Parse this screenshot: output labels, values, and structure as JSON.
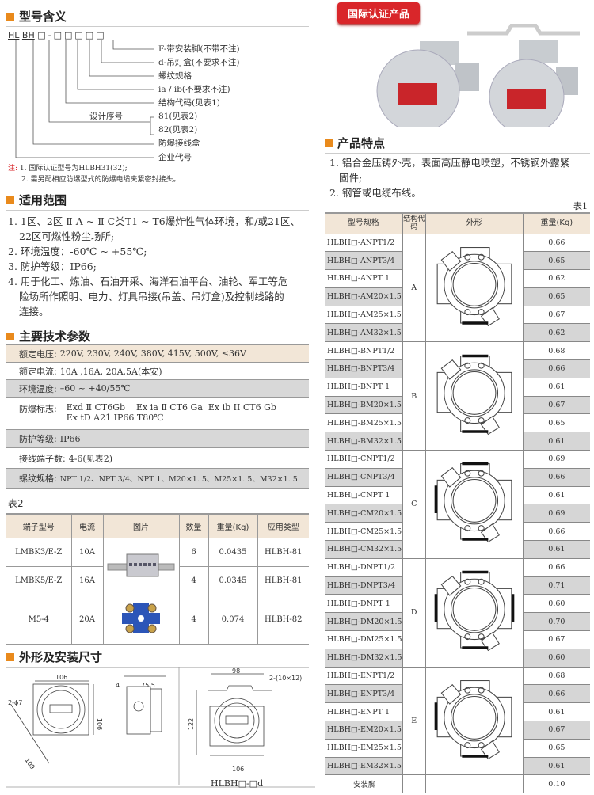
{
  "model": {
    "title": "型号含义",
    "prefix1": "HL",
    "prefix2": "BH",
    "boxes": "□-□□□□□",
    "labels": [
      "F-带安装脚(不带不注)",
      "d-吊灯盒(不要求不注)",
      "螺纹规格",
      "ia / ib(不要求不注)",
      "结构代码(见表1)",
      "81(见表2)",
      "82(见表2)",
      "防爆接线盒",
      "企业代号"
    ],
    "design_seq": "设计序号",
    "note_label": "注:",
    "notes": [
      "1. 国际认证型号为HLBH31(32);",
      "2. 需另配相应防爆型式的防爆电缆夹紧密封接头。"
    ]
  },
  "scope": {
    "title": "适用范围",
    "items": [
      "1. 1区、2区 Ⅱ A ~ Ⅱ C类T1 ~ T6爆炸性气体环境，和/或21区、",
      "22区可燃性粉尘场所;",
      "2. 环境温度：-60℃ ~ +55℃;",
      "3. 防护等级：IP66;",
      "4. 用于化工、炼油、石油开采、海洋石油平台、油轮、军工等危",
      "险场所作照明、电力、灯具吊接(吊盖、吊灯盒)及控制线路的",
      "连接。"
    ]
  },
  "params": {
    "title": "主要技术参数",
    "rows": [
      {
        "label": "额定电压:",
        "value": "220V, 230V, 240V, 380V, 415V, 500V, ≤36V"
      },
      {
        "label": "额定电流:",
        "value": "10A ,16A, 20A,5A(本安)"
      },
      {
        "label": "环境温度:",
        "value": "–60 ~ +40/55℃"
      },
      {
        "label": "防爆标志:",
        "value": "Exd Ⅱ CT6Gb    Ex ia Ⅱ CT6 Ga  Ex ib II CT6 Gb",
        "value2": "Ex tD A21 IP66 T80℃"
      },
      {
        "label": "防护等级:",
        "value": "IP66"
      },
      {
        "label": "接线端子数:",
        "value": "4-6(见表2)"
      },
      {
        "label": "螺纹规格:",
        "value": "NPT 1/2、NPT 3/4、NPT 1、M20×1. 5、M25×1. 5、M32×1. 5"
      }
    ]
  },
  "table2": {
    "caption": "表2",
    "headers": [
      "端子型号",
      "电流",
      "图片",
      "数量",
      "重量(Kg)",
      "应用类型"
    ],
    "rows": [
      [
        "LMBK3/E-Z",
        "10A",
        "6",
        "0.0435",
        "HLBH-81"
      ],
      [
        "LMBK5/E-Z",
        "16A",
        "4",
        "0.0345",
        "HLBH-81"
      ],
      [
        "M5-4",
        "20A",
        "4",
        "0.074",
        "HLBH-82"
      ]
    ]
  },
  "dims": {
    "title": "外形及安装尺寸",
    "labels": [
      "106",
      "2-ϕ7",
      "106",
      "109",
      "4",
      "75.5",
      "98",
      "2-(10×12)",
      "122",
      "106"
    ],
    "caption": "HLBH□-□d"
  },
  "badge": "国际认证产品",
  "features": {
    "title": "产品特点",
    "items": [
      "1. 铝合金压铸外壳，表面高压静电喷塑，不锈钢外露紧",
      "固件;",
      "2. 钢管或电缆布线。"
    ]
  },
  "table1": {
    "caption": "表1",
    "headers": [
      "型号规格",
      "结构代码",
      "外形",
      "重量(Kg)"
    ],
    "groups": [
      {
        "code": "A",
        "rows": [
          [
            "HLBH□-ANPT1/2",
            "0.66"
          ],
          [
            "HLBH□-ANPT3/4",
            "0.65"
          ],
          [
            "HLBH□-ANPT 1",
            "0.62"
          ],
          [
            "HLBH□-AM20×1.5",
            "0.65"
          ],
          [
            "HLBH□-AM25×1.5",
            "0.67"
          ],
          [
            "HLBH□-AM32×1.5",
            "0.62"
          ]
        ]
      },
      {
        "code": "B",
        "rows": [
          [
            "HLBH□-BNPT1/2",
            "0.68"
          ],
          [
            "HLBH□-BNPT3/4",
            "0.66"
          ],
          [
            "HLBH□-BNPT 1",
            "0.61"
          ],
          [
            "HLBH□-BM20×1.5",
            "0.67"
          ],
          [
            "HLBH□-BM25×1.5",
            "0.65"
          ],
          [
            "HLBH□-BM32×1.5",
            "0.61"
          ]
        ]
      },
      {
        "code": "C",
        "rows": [
          [
            "HLBH□-CNPT1/2",
            "0.69"
          ],
          [
            "HLBH□-CNPT3/4",
            "0.66"
          ],
          [
            "HLBH□-CNPT 1",
            "0.61"
          ],
          [
            "HLBH□-CM20×1.5",
            "0.69"
          ],
          [
            "HLBH□-CM25×1.5",
            "0.66"
          ],
          [
            "HLBH□-CM32×1.5",
            "0.61"
          ]
        ]
      },
      {
        "code": "D",
        "rows": [
          [
            "HLBH□-DNPT1/2",
            "0.66"
          ],
          [
            "HLBH□-DNPT3/4",
            "0.71"
          ],
          [
            "HLBH□-DNPT 1",
            "0.60"
          ],
          [
            "HLBH□-DM20×1.5",
            "0.70"
          ],
          [
            "HLBH□-DM25×1.5",
            "0.67"
          ],
          [
            "HLBH□-DM32×1.5",
            "0.60"
          ]
        ]
      },
      {
        "code": "E",
        "rows": [
          [
            "HLBH□-ENPT1/2",
            "0.68"
          ],
          [
            "HLBH□-ENPT3/4",
            "0.66"
          ],
          [
            "HLBH□-ENPT 1",
            "0.61"
          ],
          [
            "HLBH□-EM20×1.5",
            "0.67"
          ],
          [
            "HLBH□-EM25×1.5",
            "0.65"
          ],
          [
            "HLBH□-EM32×1.5",
            "0.61"
          ]
        ]
      }
    ],
    "footer": [
      "安装脚",
      "0.10"
    ]
  },
  "colors": {
    "accent": "#e98a1c",
    "badge": "#d9262a",
    "beige": "#f2e6d7",
    "gray": "#d8d8d8"
  }
}
